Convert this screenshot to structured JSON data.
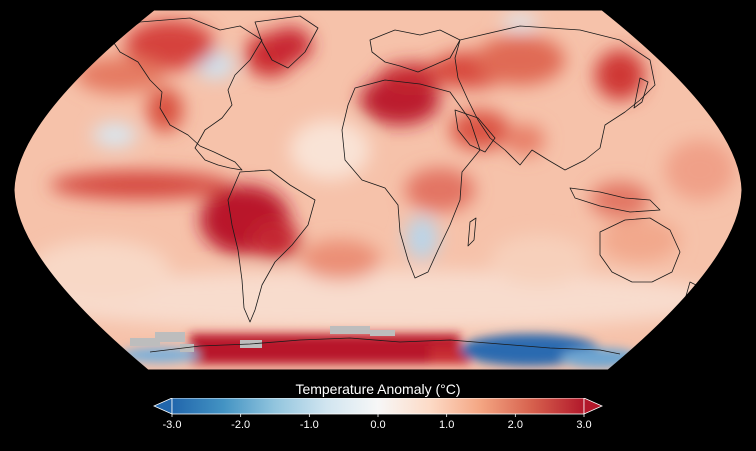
{
  "legend": {
    "title": "Temperature Anomaly (°C)",
    "ticks": [
      {
        "value": -3.0,
        "label": "-3.0"
      },
      {
        "value": -2.0,
        "label": "-2.0"
      },
      {
        "value": -1.0,
        "label": "-1.0"
      },
      {
        "value": 0.0,
        "label": "0.0"
      },
      {
        "value": 1.0,
        "label": "1.0"
      },
      {
        "value": 2.0,
        "label": "2.0"
      },
      {
        "value": 3.0,
        "label": "3.0"
      }
    ],
    "range": [
      -3.0,
      3.0
    ],
    "extends": "both"
  },
  "colors": {
    "background": "#000000",
    "ocean_base": "#f6c2aa",
    "warm_strong": "#b8132a",
    "warm_mid": "#e05a47",
    "warm_light": "#f3a98b",
    "neutral": "#f7f7f7",
    "cool_light": "#c7ddee",
    "cool_mid": "#6ea6d2",
    "cool_strong": "#2b6bb0",
    "missing_data": "#bdbdbd",
    "coastline": "#1a1a1a"
  },
  "colormap": [
    "#2166ac",
    "#4393c3",
    "#92c5de",
    "#d1e5f0",
    "#f7f7f7",
    "#fddbc7",
    "#f4a582",
    "#d6604d",
    "#b2182b"
  ],
  "map": {
    "projection": "Robinson-like",
    "variable": "surface temperature anomaly"
  }
}
